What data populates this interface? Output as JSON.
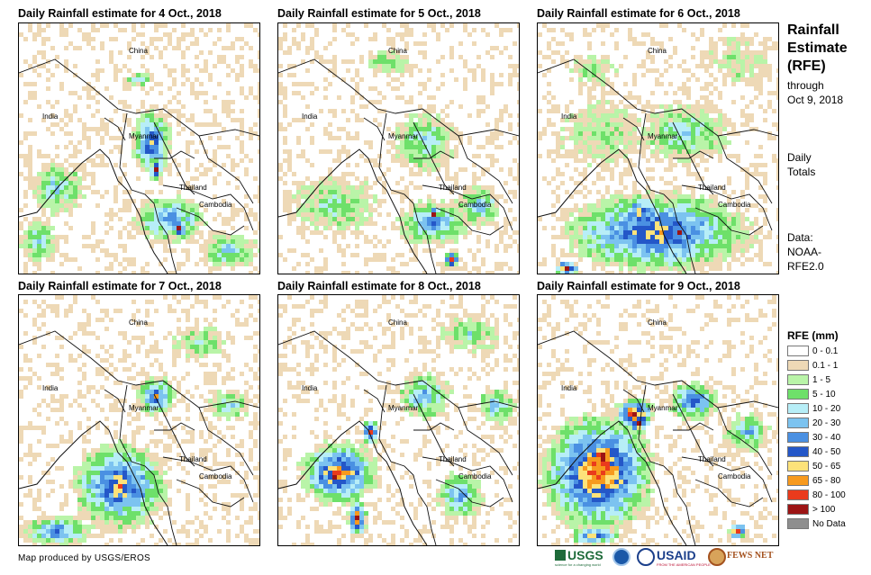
{
  "panels": [
    {
      "title": "Daily Rainfall estimate for 4 Oct., 2018"
    },
    {
      "title": "Daily Rainfall estimate for 5 Oct., 2018"
    },
    {
      "title": "Daily Rainfall estimate for 6 Oct., 2018"
    },
    {
      "title": "Daily Rainfall estimate for 7 Oct., 2018"
    },
    {
      "title": "Daily Rainfall estimate for 8 Oct., 2018"
    },
    {
      "title": "Daily Rainfall estimate for 9 Oct., 2018"
    }
  ],
  "place_labels": {
    "china": "China",
    "india": "India",
    "myanmar": "Myanmar",
    "thailand": "Thailand",
    "cambodia": "Cambodia"
  },
  "sidebar": {
    "title_line1": "Rainfall",
    "title_line2": "Estimate",
    "title_line3": "(RFE)",
    "through": "through",
    "through_date": "Oct 9, 2018",
    "daily": "Daily",
    "totals": "Totals",
    "data_label": "Data:",
    "data_source1": "NOAA-",
    "data_source2": "RFE2.0"
  },
  "legend": {
    "title": "RFE (mm)",
    "items": [
      {
        "label": "0 - 0.1",
        "color": "#ffffff"
      },
      {
        "label": "0.1 - 1",
        "color": "#eed9b6"
      },
      {
        "label": "1 - 5",
        "color": "#b9f4a8"
      },
      {
        "label": "5 - 10",
        "color": "#6ee06a"
      },
      {
        "label": "10 - 20",
        "color": "#b7eef7"
      },
      {
        "label": "20 - 30",
        "color": "#7cc3f0"
      },
      {
        "label": "30 - 40",
        "color": "#4a90e2"
      },
      {
        "label": "40 - 50",
        "color": "#2457c8"
      },
      {
        "label": "50 - 65",
        "color": "#fde27a"
      },
      {
        "label": "65 - 80",
        "color": "#f79a1e"
      },
      {
        "label": "80 - 100",
        "color": "#ea3b1c"
      },
      {
        "label": "> 100",
        "color": "#9c1414"
      },
      {
        "label": "No Data",
        "color": "#8e8e8e"
      }
    ]
  },
  "footer": {
    "credit": "Map produced by USGS/EROS",
    "logo_usgs": "USGS",
    "logo_usgs_tagline": "science for a changing world",
    "logo_usaid": "USAID",
    "logo_usaid_tagline": "FROM THE AMERICAN PEOPLE",
    "logo_fews": "FEWS NET"
  }
}
